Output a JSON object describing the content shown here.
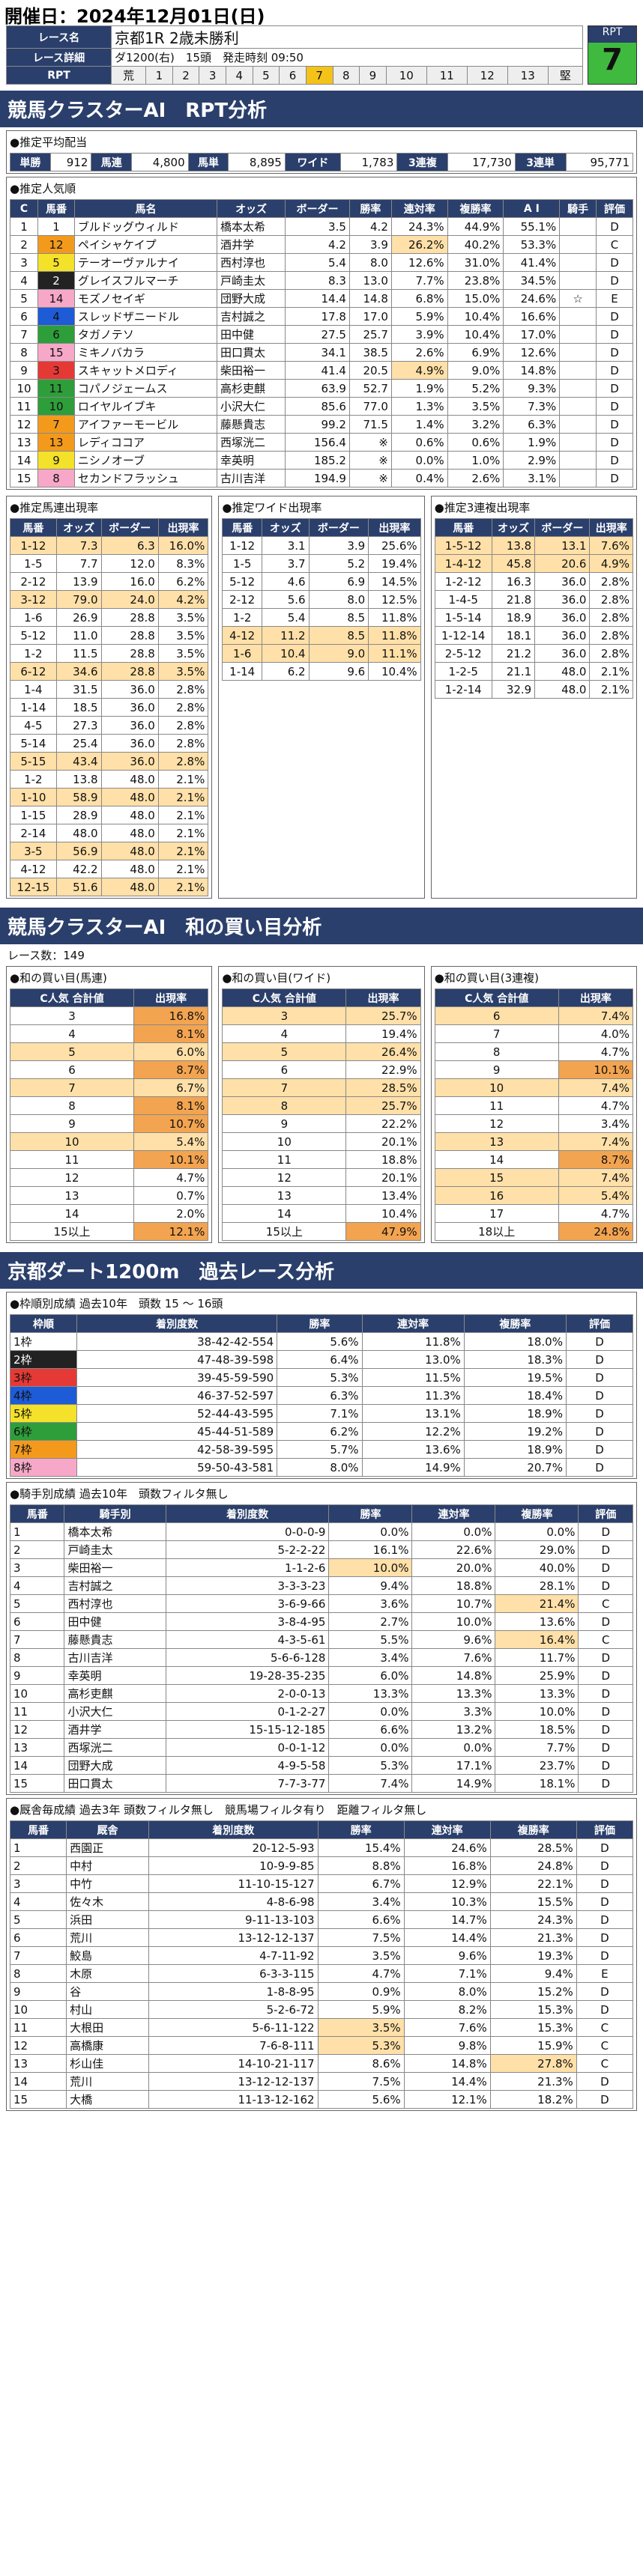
{
  "header": {
    "title": "開催日：2024年12月01日(日)"
  },
  "race": {
    "name_label": "レース名",
    "name": "京都1R 2歳未勝利",
    "detail_label": "レース詳細",
    "detail": "ダ1200(右)　15頭　発走時刻 09:50",
    "rpt_label": "RPT",
    "rpt_badge": "RPT",
    "rpt_value": "7",
    "rpt_cells": [
      "荒",
      "1",
      "2",
      "3",
      "4",
      "5",
      "6",
      "7",
      "8",
      "9",
      "10",
      "11",
      "12",
      "13",
      "堅"
    ],
    "rpt_active": 7
  },
  "section1": {
    "title": "競馬クラスターAI　RPT分析"
  },
  "payout": {
    "title": "●推定平均配当",
    "items": [
      {
        "label": "単勝",
        "value": "912"
      },
      {
        "label": "馬連",
        "value": "4,800"
      },
      {
        "label": "馬単",
        "value": "8,895"
      },
      {
        "label": "ワイド",
        "value": "1,783"
      },
      {
        "label": "3連複",
        "value": "17,730"
      },
      {
        "label": "3連単",
        "value": "95,771"
      }
    ]
  },
  "popularity": {
    "title": "●推定人気順",
    "headers": [
      "C",
      "馬番",
      "馬名",
      "オッズ",
      "ボーダー",
      "勝率",
      "連対率",
      "複勝率",
      "A I",
      "騎手",
      "評価"
    ],
    "rows": [
      [
        "1",
        "1",
        "ブルドッグウィルド",
        "橋本太希",
        "3.5",
        "4.2",
        "24.3%",
        "44.9%",
        "55.1%",
        "",
        "D"
      ],
      [
        "2",
        "12",
        "ペイシャケイプ",
        "酒井学",
        "4.2",
        "3.9",
        "26.2%",
        "40.2%",
        "53.3%",
        "",
        "C"
      ],
      [
        "3",
        "5",
        "テーオーヴァルナイ",
        "西村淳也",
        "5.4",
        "8.0",
        "12.6%",
        "31.0%",
        "41.4%",
        "",
        "D"
      ],
      [
        "4",
        "2",
        "グレイスフルマーチ",
        "戸崎圭太",
        "8.3",
        "13.0",
        "7.7%",
        "23.8%",
        "34.5%",
        "",
        "D"
      ],
      [
        "5",
        "14",
        "モズノセイギ",
        "団野大成",
        "14.4",
        "14.8",
        "6.8%",
        "15.0%",
        "24.6%",
        "☆",
        "E"
      ],
      [
        "6",
        "4",
        "スレッドザニードル",
        "吉村誠之",
        "17.8",
        "17.0",
        "5.9%",
        "10.4%",
        "16.6%",
        "",
        "D"
      ],
      [
        "7",
        "6",
        "タガノテソ",
        "田中健",
        "27.5",
        "25.7",
        "3.9%",
        "10.4%",
        "17.0%",
        "",
        "D"
      ],
      [
        "8",
        "15",
        "ミキノバカラ",
        "田口貫太",
        "34.1",
        "38.5",
        "2.6%",
        "6.9%",
        "12.6%",
        "",
        "D"
      ],
      [
        "9",
        "3",
        "スキャットメロディ",
        "柴田裕一",
        "41.4",
        "20.5",
        "4.9%",
        "9.0%",
        "14.8%",
        "",
        "D"
      ],
      [
        "10",
        "11",
        "コパノジェームス",
        "高杉吏麒",
        "63.9",
        "52.7",
        "1.9%",
        "5.2%",
        "9.3%",
        "",
        "D"
      ],
      [
        "11",
        "10",
        "ロイヤルイブキ",
        "小沢大仁",
        "85.6",
        "77.0",
        "1.3%",
        "3.5%",
        "7.3%",
        "",
        "D"
      ],
      [
        "12",
        "7",
        "アイファーモービル",
        "藤懸貴志",
        "99.2",
        "71.5",
        "1.4%",
        "3.2%",
        "6.3%",
        "",
        "D"
      ],
      [
        "13",
        "13",
        "レディココア",
        "西塚洸二",
        "156.4",
        "※",
        "0.6%",
        "0.6%",
        "1.9%",
        "",
        "D"
      ],
      [
        "14",
        "9",
        "ニシノオーブ",
        "幸英明",
        "185.2",
        "※",
        "0.0%",
        "1.0%",
        "2.9%",
        "",
        "D"
      ],
      [
        "15",
        "8",
        "セカンドフラッシュ",
        "古川吉洋",
        "194.9",
        "※",
        "0.4%",
        "2.6%",
        "3.1%",
        "",
        "D"
      ]
    ]
  },
  "wakucolors": [
    "#ffffff",
    "#222222",
    "#e53935",
    "#1e5bd6",
    "#f3e12a",
    "#2e9e3a",
    "#f39a1d",
    "#f7a8c8"
  ],
  "umaren": {
    "title": "●推定馬連出現率",
    "headers": [
      "馬番",
      "オッズ",
      "ボーダー",
      "出現率"
    ],
    "rows": [
      [
        "1-12",
        "7.3",
        "6.3",
        "16.0%"
      ],
      [
        "1-5",
        "7.7",
        "12.0",
        "8.3%"
      ],
      [
        "2-12",
        "13.9",
        "16.0",
        "6.2%"
      ],
      [
        "3-12",
        "79.0",
        "24.0",
        "4.2%"
      ],
      [
        "1-6",
        "26.9",
        "28.8",
        "3.5%"
      ],
      [
        "5-12",
        "11.0",
        "28.8",
        "3.5%"
      ],
      [
        "1-2",
        "11.5",
        "28.8",
        "3.5%"
      ],
      [
        "6-12",
        "34.6",
        "28.8",
        "3.5%"
      ],
      [
        "1-4",
        "31.5",
        "36.0",
        "2.8%"
      ],
      [
        "1-14",
        "18.5",
        "36.0",
        "2.8%"
      ],
      [
        "4-5",
        "27.3",
        "36.0",
        "2.8%"
      ],
      [
        "5-14",
        "25.4",
        "36.0",
        "2.8%"
      ],
      [
        "5-15",
        "43.4",
        "36.0",
        "2.8%"
      ],
      [
        "1-2",
        "13.8",
        "48.0",
        "2.1%"
      ],
      [
        "1-10",
        "58.9",
        "48.0",
        "2.1%"
      ],
      [
        "1-15",
        "28.9",
        "48.0",
        "2.1%"
      ],
      [
        "2-14",
        "48.0",
        "48.0",
        "2.1%"
      ],
      [
        "3-5",
        "56.9",
        "48.0",
        "2.1%"
      ],
      [
        "4-12",
        "42.2",
        "48.0",
        "2.1%"
      ],
      [
        "12-15",
        "51.6",
        "48.0",
        "2.1%"
      ]
    ],
    "hl": [
      0,
      3,
      7,
      12,
      14,
      17,
      19
    ]
  },
  "wide": {
    "title": "●推定ワイド出現率",
    "headers": [
      "馬番",
      "オッズ",
      "ボーダー",
      "出現率"
    ],
    "rows": [
      [
        "1-12",
        "3.1",
        "3.9",
        "25.6%"
      ],
      [
        "1-5",
        "3.7",
        "5.2",
        "19.4%"
      ],
      [
        "5-12",
        "4.6",
        "6.9",
        "14.5%"
      ],
      [
        "2-12",
        "5.6",
        "8.0",
        "12.5%"
      ],
      [
        "1-2",
        "5.4",
        "8.5",
        "11.8%"
      ],
      [
        "4-12",
        "11.2",
        "8.5",
        "11.8%"
      ],
      [
        "1-6",
        "10.4",
        "9.0",
        "11.1%"
      ],
      [
        "1-14",
        "6.2",
        "9.6",
        "10.4%"
      ]
    ],
    "hl": [
      5,
      6
    ]
  },
  "sanrenpuku": {
    "title": "●推定3連複出現率",
    "headers": [
      "馬番",
      "オッズ",
      "ボーダー",
      "出現率"
    ],
    "rows": [
      [
        "1-5-12",
        "13.8",
        "13.1",
        "7.6%"
      ],
      [
        "1-4-12",
        "45.8",
        "20.6",
        "4.9%"
      ],
      [
        "1-2-12",
        "16.3",
        "36.0",
        "2.8%"
      ],
      [
        "1-4-5",
        "21.8",
        "36.0",
        "2.8%"
      ],
      [
        "1-5-14",
        "18.9",
        "36.0",
        "2.8%"
      ],
      [
        "1-12-14",
        "18.1",
        "36.0",
        "2.8%"
      ],
      [
        "2-5-12",
        "21.2",
        "36.0",
        "2.8%"
      ],
      [
        "1-2-5",
        "21.1",
        "48.0",
        "2.1%"
      ],
      [
        "1-2-14",
        "32.9",
        "48.0",
        "2.1%"
      ]
    ],
    "hl": [
      0,
      1
    ]
  },
  "section2": {
    "title": "競馬クラスターAI　和の買い目分析",
    "count": "レース数：149"
  },
  "wa_umaren": {
    "title": "●和の買い目(馬連)",
    "headers": [
      "C人気\n合計値",
      "出現率"
    ],
    "rows": [
      [
        "3",
        "16.8%"
      ],
      [
        "4",
        "8.1%"
      ],
      [
        "5",
        "6.0%"
      ],
      [
        "6",
        "8.7%"
      ],
      [
        "7",
        "6.7%"
      ],
      [
        "8",
        "8.1%"
      ],
      [
        "9",
        "10.7%"
      ],
      [
        "10",
        "5.4%"
      ],
      [
        "11",
        "10.1%"
      ],
      [
        "12",
        "4.7%"
      ],
      [
        "13",
        "0.7%"
      ],
      [
        "14",
        "2.0%"
      ],
      [
        "15以上",
        "12.1%"
      ]
    ],
    "hl2": [
      0,
      1,
      3,
      5,
      6,
      8,
      12
    ],
    "hl": [
      2,
      4,
      7
    ]
  },
  "wa_wide": {
    "title": "●和の買い目(ワイド)",
    "headers": [
      "C人気\n合計値",
      "出現率"
    ],
    "rows": [
      [
        "3",
        "25.7%"
      ],
      [
        "4",
        "19.4%"
      ],
      [
        "5",
        "26.4%"
      ],
      [
        "6",
        "22.9%"
      ],
      [
        "7",
        "28.5%"
      ],
      [
        "8",
        "25.7%"
      ],
      [
        "9",
        "22.2%"
      ],
      [
        "10",
        "20.1%"
      ],
      [
        "11",
        "18.8%"
      ],
      [
        "12",
        "20.1%"
      ],
      [
        "13",
        "13.4%"
      ],
      [
        "14",
        "10.4%"
      ],
      [
        "15以上",
        "47.9%"
      ]
    ],
    "hl": [
      0,
      2,
      4,
      5
    ],
    "hl2": [
      12
    ]
  },
  "wa_sanren": {
    "title": "●和の買い目(3連複)",
    "headers": [
      "C人気\n合計値",
      "出現率"
    ],
    "rows": [
      [
        "6",
        "7.4%"
      ],
      [
        "7",
        "4.0%"
      ],
      [
        "8",
        "4.7%"
      ],
      [
        "9",
        "10.1%"
      ],
      [
        "10",
        "7.4%"
      ],
      [
        "11",
        "4.7%"
      ],
      [
        "12",
        "3.4%"
      ],
      [
        "13",
        "7.4%"
      ],
      [
        "14",
        "8.7%"
      ],
      [
        "15",
        "7.4%"
      ],
      [
        "16",
        "5.4%"
      ],
      [
        "17",
        "4.7%"
      ],
      [
        "18以上",
        "24.8%"
      ]
    ],
    "hl": [
      0,
      4,
      7,
      9,
      10
    ],
    "hl2": [
      3,
      8,
      12
    ]
  },
  "section3": {
    "title": "京都ダート1200m　過去レース分析"
  },
  "waku": {
    "title": "●枠順別成績 過去10年　頭数 15 ～ 16頭",
    "headers": [
      "枠順",
      "着別度数",
      "勝率",
      "連対率",
      "複勝率",
      "評価"
    ],
    "rows": [
      [
        "1枠",
        "38-42-42-554",
        "5.6%",
        "11.8%",
        "18.0%",
        "D"
      ],
      [
        "2枠",
        "47-48-39-598",
        "6.4%",
        "13.0%",
        "18.3%",
        "D"
      ],
      [
        "3枠",
        "39-45-59-590",
        "5.3%",
        "11.5%",
        "19.5%",
        "D"
      ],
      [
        "4枠",
        "46-37-52-597",
        "6.3%",
        "11.3%",
        "18.4%",
        "D"
      ],
      [
        "5枠",
        "52-44-43-595",
        "7.1%",
        "13.1%",
        "18.9%",
        "D"
      ],
      [
        "6枠",
        "45-44-51-589",
        "6.2%",
        "12.2%",
        "19.2%",
        "D"
      ],
      [
        "7枠",
        "42-58-39-595",
        "5.7%",
        "13.6%",
        "18.9%",
        "D"
      ],
      [
        "8枠",
        "59-50-43-581",
        "8.0%",
        "14.9%",
        "20.7%",
        "D"
      ]
    ]
  },
  "jockey": {
    "title": "●騎手別成績 過去10年　頭数フィルタ無し",
    "headers": [
      "馬番",
      "騎手別",
      "着別度数",
      "勝率",
      "連対率",
      "複勝率",
      "評価"
    ],
    "rows": [
      [
        "1",
        "橋本太希",
        "0-0-0-9",
        "0.0%",
        "0.0%",
        "0.0%",
        "D"
      ],
      [
        "2",
        "戸崎圭太",
        "5-2-2-22",
        "16.1%",
        "22.6%",
        "29.0%",
        "D"
      ],
      [
        "3",
        "柴田裕一",
        "1-1-2-6",
        "10.0%",
        "20.0%",
        "40.0%",
        "D"
      ],
      [
        "4",
        "吉村誠之",
        "3-3-3-23",
        "9.4%",
        "18.8%",
        "28.1%",
        "D"
      ],
      [
        "5",
        "西村淳也",
        "3-6-9-66",
        "3.6%",
        "10.7%",
        "21.4%",
        "C"
      ],
      [
        "6",
        "田中健",
        "3-8-4-95",
        "2.7%",
        "10.0%",
        "13.6%",
        "D"
      ],
      [
        "7",
        "藤懸貴志",
        "4-3-5-61",
        "5.5%",
        "9.6%",
        "16.4%",
        "C"
      ],
      [
        "8",
        "古川吉洋",
        "5-6-6-128",
        "3.4%",
        "7.6%",
        "11.7%",
        "D"
      ],
      [
        "9",
        "幸英明",
        "19-28-35-235",
        "6.0%",
        "14.8%",
        "25.9%",
        "D"
      ],
      [
        "10",
        "高杉吏麒",
        "2-0-0-13",
        "13.3%",
        "13.3%",
        "13.3%",
        "D"
      ],
      [
        "11",
        "小沢大仁",
        "0-1-2-27",
        "0.0%",
        "3.3%",
        "10.0%",
        "D"
      ],
      [
        "12",
        "酒井学",
        "15-15-12-185",
        "6.6%",
        "13.2%",
        "18.5%",
        "D"
      ],
      [
        "13",
        "西塚洸二",
        "0-0-1-12",
        "0.0%",
        "0.0%",
        "7.7%",
        "D"
      ],
      [
        "14",
        "団野大成",
        "4-9-5-58",
        "5.3%",
        "17.1%",
        "23.7%",
        "D"
      ],
      [
        "15",
        "田口貫太",
        "7-7-3-77",
        "7.4%",
        "14.9%",
        "18.1%",
        "D"
      ]
    ],
    "hl": [
      [
        2,
        3
      ],
      [
        4,
        5
      ],
      [
        6,
        5
      ]
    ]
  },
  "trainer": {
    "title": "●厩舎毎成績 過去3年 頭数フィルタ無し　競馬場フィルタ有り　距離フィルタ無し",
    "headers": [
      "馬番",
      "厩舎",
      "着別度数",
      "勝率",
      "連対率",
      "複勝率",
      "評価"
    ],
    "rows": [
      [
        "1",
        "西園正",
        "20-12-5-93",
        "15.4%",
        "24.6%",
        "28.5%",
        "D"
      ],
      [
        "2",
        "中村",
        "10-9-9-85",
        "8.8%",
        "16.8%",
        "24.8%",
        "D"
      ],
      [
        "3",
        "中竹",
        "11-10-15-127",
        "6.7%",
        "12.9%",
        "22.1%",
        "D"
      ],
      [
        "4",
        "佐々木",
        "4-8-6-98",
        "3.4%",
        "10.3%",
        "15.5%",
        "D"
      ],
      [
        "5",
        "浜田",
        "9-11-13-103",
        "6.6%",
        "14.7%",
        "24.3%",
        "D"
      ],
      [
        "6",
        "荒川",
        "13-12-12-137",
        "7.5%",
        "14.4%",
        "21.3%",
        "D"
      ],
      [
        "7",
        "鮫島",
        "4-7-11-92",
        "3.5%",
        "9.6%",
        "19.3%",
        "D"
      ],
      [
        "8",
        "木原",
        "6-3-3-115",
        "4.7%",
        "7.1%",
        "9.4%",
        "E"
      ],
      [
        "9",
        "谷",
        "1-8-8-95",
        "0.9%",
        "8.0%",
        "15.2%",
        "D"
      ],
      [
        "10",
        "村山",
        "5-2-6-72",
        "5.9%",
        "8.2%",
        "15.3%",
        "D"
      ],
      [
        "11",
        "大根田",
        "5-6-11-122",
        "3.5%",
        "7.6%",
        "15.3%",
        "C"
      ],
      [
        "12",
        "高橋康",
        "7-6-8-111",
        "5.3%",
        "9.8%",
        "15.9%",
        "C"
      ],
      [
        "13",
        "杉山佳",
        "14-10-21-117",
        "8.6%",
        "14.8%",
        "27.8%",
        "C"
      ],
      [
        "14",
        "荒川",
        "13-12-12-137",
        "7.5%",
        "14.4%",
        "21.3%",
        "D"
      ],
      [
        "15",
        "大橋",
        "11-13-12-162",
        "5.6%",
        "12.1%",
        "18.2%",
        "D"
      ]
    ],
    "hl": [
      [
        10,
        3
      ],
      [
        11,
        3
      ],
      [
        12,
        5
      ]
    ]
  }
}
